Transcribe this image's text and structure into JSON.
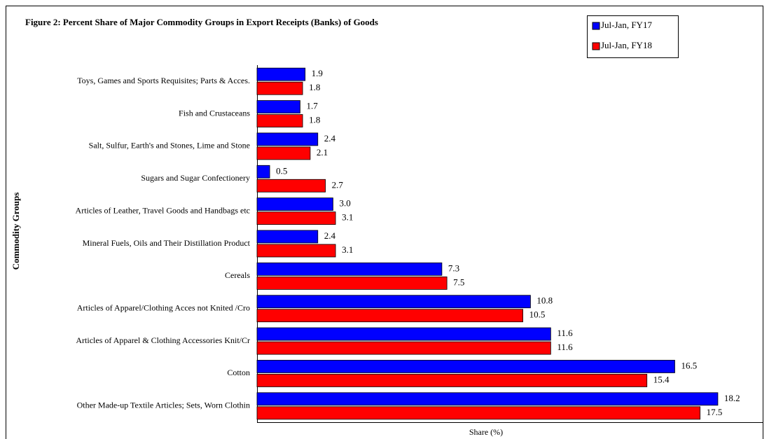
{
  "chart_data": {
    "type": "barh",
    "title": "Figure 2: Percent Share of Major Commodity Groups in Export Receipts (Banks) of Goods",
    "ylabel": "Commodity Groups",
    "xlabel": "Share (%)",
    "categories": [
      "Toys, Games and Sports Requisites; Parts & Acces.",
      "Fish and Crustaceans",
      "Salt, Sulfur, Earth's and Stones, Lime and Stone",
      "Sugars and Sugar Confectionery",
      "Articles of Leather, Travel Goods and Handbags etc",
      "Mineral Fuels, Oils and Their Distillation Product",
      "Cereals",
      "Articles of Apparel/Clothing Acces not Knited /Cro",
      "Articles of Apparel & Clothing Accessories Knit/Cr",
      "Cotton",
      "Other Made-up Textile Articles; Sets, Worn Clothin"
    ],
    "series": [
      {
        "name": "Jul-Jan, FY17",
        "color": "#0000ff",
        "values": [
          1.9,
          1.7,
          2.4,
          0.5,
          3.0,
          2.4,
          7.3,
          10.8,
          11.6,
          16.5,
          18.2
        ],
        "value_labels": [
          "1.9",
          "1.7",
          "2.4",
          "0.5",
          "3.0",
          "2.4",
          "7.3",
          "10.8",
          "11.6",
          "16.5",
          "18.2"
        ]
      },
      {
        "name": "Jul-Jan, FY18",
        "color": "#ff0000",
        "values": [
          1.8,
          1.8,
          2.1,
          2.7,
          3.1,
          3.1,
          7.5,
          10.5,
          11.6,
          15.4,
          17.5
        ],
        "value_labels": [
          "1.8",
          "1.8",
          "2.1",
          "2.7",
          "3.1",
          "3.1",
          "7.5",
          "10.5",
          "11.6",
          "15.4",
          "17.5"
        ]
      }
    ],
    "xlim": [
      0,
      20
    ],
    "legend": "top-right"
  }
}
